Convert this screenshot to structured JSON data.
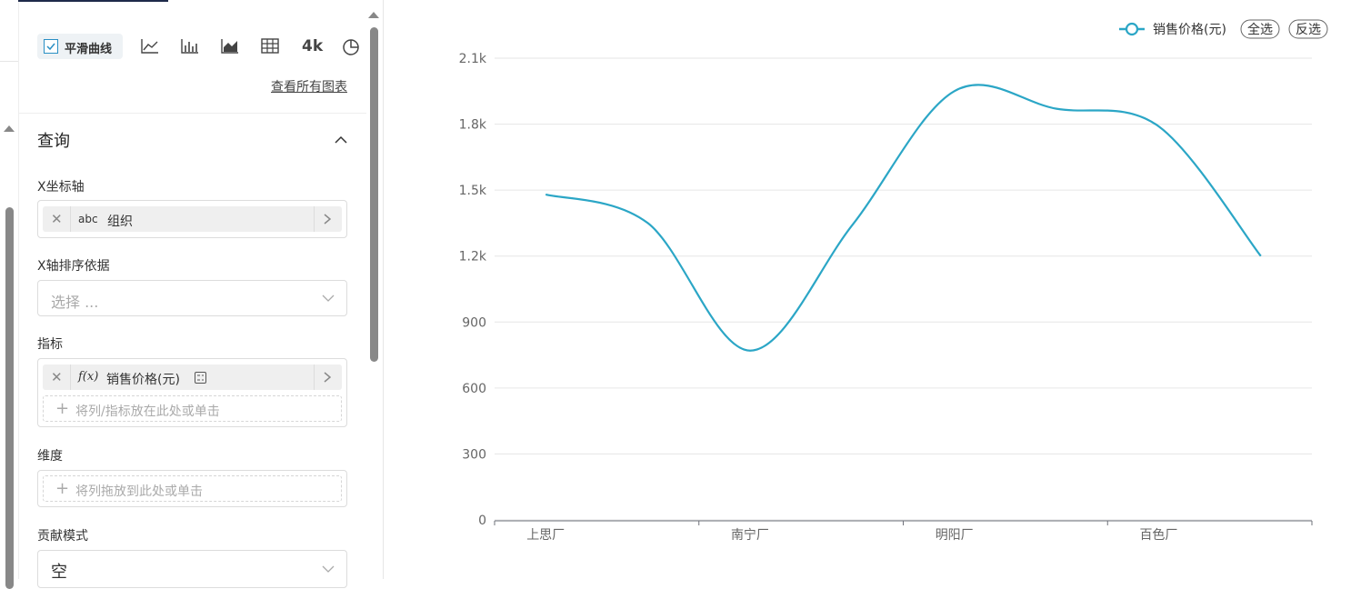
{
  "toolbar": {
    "smooth_checkbox": "平滑曲线",
    "kpi_icon": "4k",
    "all_charts_link": "查看所有图表"
  },
  "query_panel": {
    "title": "查询",
    "x_axis": {
      "label": "X坐标轴",
      "field_type": "abc",
      "field": "组织"
    },
    "x_sort": {
      "label": "X轴排序依据",
      "placeholder": "选择 ..."
    },
    "metrics": {
      "label": "指标",
      "field_type": "f(x)",
      "field": "销售价格(元)",
      "drop_hint": "将列/指标放在此处或单击"
    },
    "dimensions": {
      "label": "维度",
      "drop_hint": "将列拖放到此处或单击"
    },
    "contribution": {
      "label": "贡献模式",
      "value": "空"
    }
  },
  "legend_buttons": {
    "select_all": "全选",
    "invert": "反选"
  },
  "chart_data": {
    "type": "line",
    "smooth": true,
    "categories": [
      "上思厂",
      null,
      "南宁厂",
      null,
      "明阳厂",
      null,
      "百色厂",
      null
    ],
    "series": [
      {
        "name": "销售价格(元)",
        "color": "#2ba6c6",
        "values": [
          1480,
          1350,
          770,
          1340,
          1950,
          1870,
          1790,
          1200
        ]
      }
    ],
    "ylim": [
      0,
      2100
    ],
    "yticks": [
      0,
      300,
      600,
      900,
      {
        "value": 1200,
        "label": "1.2k"
      },
      {
        "value": 1500,
        "label": "1.5k"
      },
      {
        "value": 1800,
        "label": "1.8k"
      },
      {
        "value": 2100,
        "label": "2.1k"
      }
    ],
    "grid": true,
    "legend": "top-right"
  }
}
